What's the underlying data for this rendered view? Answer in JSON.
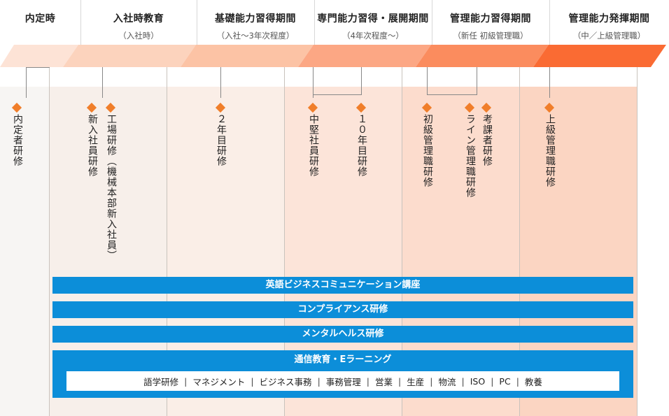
{
  "phases": [
    {
      "title": "内定時",
      "subtitle": ""
    },
    {
      "title": "入社時教育",
      "subtitle": "（入社時）"
    },
    {
      "title": "基礎能力習得期間",
      "subtitle": "（入社～3年次程度）"
    },
    {
      "title": "専門能力習得・展開期間",
      "subtitle": "（4年次程度～）"
    },
    {
      "title": "管理能力習得期間",
      "subtitle": "（新任 初級管理職）"
    },
    {
      "title": "管理能力発揮期間",
      "subtitle": "（中／上級管理職）"
    }
  ],
  "colors": {
    "accent_diamond": "#f07e2a",
    "bar_blue": "#0c8ed9",
    "arrow_shades": [
      "#fde3d6",
      "#fcd3bd",
      "#fcc3a5",
      "#fca784",
      "#fb8c5e",
      "#fa6b33"
    ],
    "column_shades": [
      "#f7f5f3",
      "#f7efea",
      "#faeee7",
      "#fce4d9",
      "#fcdccd",
      "#fbd5c2"
    ]
  },
  "trainings": {
    "naiteisha": "内定者研修",
    "shinnyu": "新入社員研修",
    "kojo": "工場研修（機械本部新入社員）",
    "nenme2": "２年目研修",
    "chuken": "中堅社員研修",
    "nenme10": "１０年目研修",
    "shokyu": "初級管理職研修",
    "line": "ライン管理職研修",
    "kouka": "考課者研修",
    "jokyu": "上級管理職研修"
  },
  "bars": {
    "english": "英語ビジネスコミュニケーション講座",
    "compliance": "コンプライアンス研修",
    "mental": "メンタルヘルス研修",
    "elearning": "通信教育・Eラーニング"
  },
  "elearning_items": [
    "語学研修",
    "マネジメント",
    "ビジネス事務",
    "事務管理",
    "営業",
    "生産",
    "物流",
    "ISO",
    "PC",
    "教養"
  ],
  "separator": "|"
}
